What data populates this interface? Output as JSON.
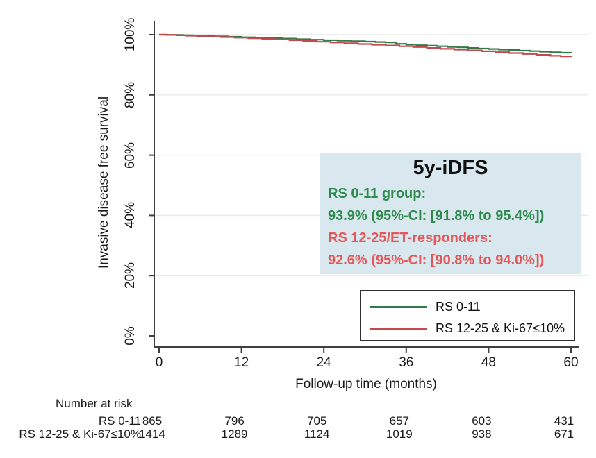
{
  "chart_data": {
    "type": "line",
    "subtype": "kaplan-meier-step",
    "title": "",
    "xlabel": "Follow-up time (months)",
    "ylabel": "Invasive disease free survival",
    "xlim": [
      0,
      60
    ],
    "ylim": [
      0,
      100
    ],
    "xtick_values": [
      0,
      12,
      24,
      36,
      48,
      60
    ],
    "xtick_labels": [
      "0",
      "12",
      "24",
      "36",
      "48",
      "60"
    ],
    "ytick_values": [
      100,
      80,
      60,
      40,
      20,
      0
    ],
    "ytick_labels": [
      "100%",
      "80%",
      "60%",
      "40%",
      "20%",
      "0%"
    ],
    "grid": "horizontal light-gray lines at 20%-100%, legend inside bottom-right",
    "axis_color": "#3f3f3f",
    "grid_color": "#e8e8e8",
    "series": [
      {
        "name": "RS 0-11",
        "color": "#337a4a",
        "points": [
          [
            0,
            100
          ],
          [
            1,
            99.95
          ],
          [
            2,
            99.9
          ],
          [
            3.5,
            99.8
          ],
          [
            5,
            99.7
          ],
          [
            6.5,
            99.6
          ],
          [
            8,
            99.45
          ],
          [
            10,
            99.3
          ],
          [
            12,
            99.15
          ],
          [
            14,
            99.0
          ],
          [
            16,
            98.85
          ],
          [
            18,
            98.7
          ],
          [
            20,
            98.5
          ],
          [
            22,
            98.35
          ],
          [
            24,
            98.15
          ],
          [
            26,
            98.0
          ],
          [
            28,
            97.85
          ],
          [
            30,
            97.7
          ],
          [
            31.5,
            97.55
          ],
          [
            33,
            97.45
          ],
          [
            34.5,
            96.95
          ],
          [
            36,
            96.7
          ],
          [
            37.5,
            96.5
          ],
          [
            39,
            96.35
          ],
          [
            40.5,
            96.15
          ],
          [
            42,
            95.95
          ],
          [
            43.5,
            95.8
          ],
          [
            45,
            95.6
          ],
          [
            46.5,
            95.4
          ],
          [
            48,
            95.25
          ],
          [
            49.5,
            95.05
          ],
          [
            51,
            94.9
          ],
          [
            52.5,
            94.7
          ],
          [
            54,
            94.55
          ],
          [
            55.5,
            94.35
          ],
          [
            57,
            94.15
          ],
          [
            58.5,
            94.0
          ],
          [
            60,
            93.9
          ]
        ]
      },
      {
        "name": "RS 12-25 & Ki-67≤10%",
        "color": "#c4494e",
        "points": [
          [
            0,
            100
          ],
          [
            1,
            99.9
          ],
          [
            2.5,
            99.8
          ],
          [
            4,
            99.65
          ],
          [
            5.5,
            99.5
          ],
          [
            7,
            99.35
          ],
          [
            9,
            99.2
          ],
          [
            11,
            99.0
          ],
          [
            13,
            98.8
          ],
          [
            15,
            98.6
          ],
          [
            17,
            98.4
          ],
          [
            19,
            98.15
          ],
          [
            21,
            97.9
          ],
          [
            23,
            97.65
          ],
          [
            25,
            97.4
          ],
          [
            27,
            97.15
          ],
          [
            29,
            96.9
          ],
          [
            31,
            96.65
          ],
          [
            33,
            96.4
          ],
          [
            35,
            96.15
          ],
          [
            37,
            95.9
          ],
          [
            39,
            95.6
          ],
          [
            41,
            95.3
          ],
          [
            43,
            95.05
          ],
          [
            45,
            94.8
          ],
          [
            47,
            94.5
          ],
          [
            49,
            94.2
          ],
          [
            51,
            93.9
          ],
          [
            53,
            93.6
          ],
          [
            55,
            93.3
          ],
          [
            57,
            93.0
          ],
          [
            58.5,
            92.8
          ],
          [
            60,
            92.6
          ]
        ]
      }
    ],
    "legend": {
      "position": "inside-bottom-right",
      "entries": [
        "RS 0-11",
        "RS 12-25 & Ki-67≤10%"
      ]
    },
    "annotation": {
      "title": "5y-iDFS",
      "background": "#d9e7ee",
      "lines": [
        {
          "label": "RS 0-11 group:",
          "value": "93.9%",
          "ci": "(95%-CI: [91.8% to 95.4%])",
          "color": "#2e8b4e"
        },
        {
          "label": "RS 12-25/ET-responders:",
          "value": "92.6%",
          "ci": "(95%-CI: [90.8% to 94.0%])",
          "color": "#e25757"
        }
      ]
    },
    "risk_table": {
      "title": "Number at risk",
      "rows": [
        {
          "label": "RS 0-11",
          "values": [
            "865",
            "796",
            "705",
            "657",
            "603",
            "431"
          ]
        },
        {
          "label": "RS 12-25 & Ki-67≤10%",
          "values": [
            "1414",
            "1289",
            "1124",
            "1019",
            "938",
            "671"
          ]
        }
      ]
    }
  }
}
